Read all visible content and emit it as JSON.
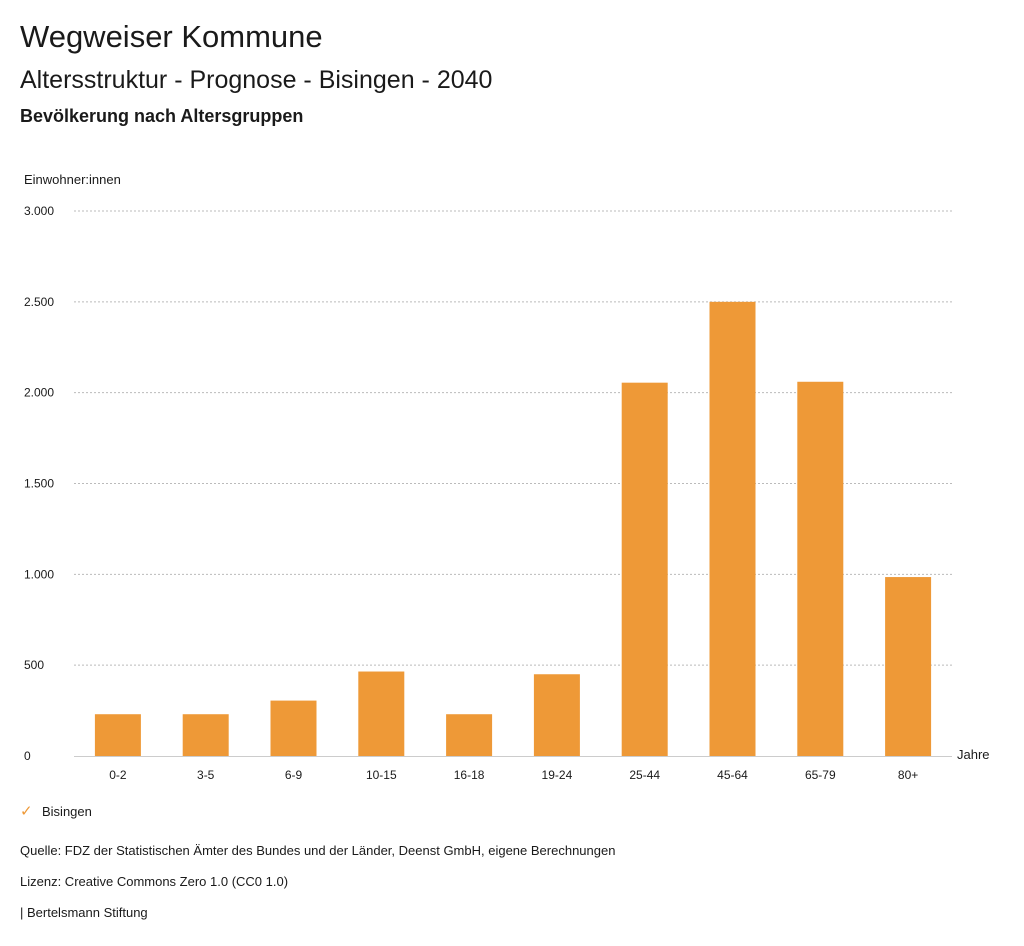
{
  "header": {
    "title": "Wegweiser Kommune",
    "subtitle": "Altersstruktur - Prognose - Bisingen - 2040",
    "chart_title": "Bevölkerung nach Altersgruppen"
  },
  "colors": {
    "bar": "#ee9937",
    "grid": "#bbbbbb",
    "axis": "#cccccc"
  },
  "legend": {
    "icon": "check-icon",
    "label": "Bisingen"
  },
  "footer": {
    "source": "Quelle: FDZ der Statistischen Ämter des Bundes und der Länder, Deenst GmbH, eigene Berechnungen",
    "license": "Lizenz: Creative Commons Zero 1.0 (CC0 1.0)",
    "brand": "| Bertelsmann Stiftung"
  },
  "chart_data": {
    "type": "bar",
    "ylabel": "Einwohner:innen",
    "xlabel": "Jahre",
    "ylim": [
      0,
      3000
    ],
    "yticks": [
      0,
      500,
      1000,
      1500,
      2000,
      2500,
      3000
    ],
    "ytick_labels": [
      "0",
      "500",
      "1.000",
      "1.500",
      "2.000",
      "2.500",
      "3.000"
    ],
    "grid": true,
    "legend_position": "bottom-left",
    "categories": [
      "0-2",
      "3-5",
      "6-9",
      "10-15",
      "16-18",
      "19-24",
      "25-44",
      "45-64",
      "65-79",
      "80+"
    ],
    "series": [
      {
        "name": "Bisingen",
        "values": [
          230,
          230,
          305,
          465,
          230,
          450,
          2055,
          2500,
          2060,
          985
        ]
      }
    ]
  }
}
